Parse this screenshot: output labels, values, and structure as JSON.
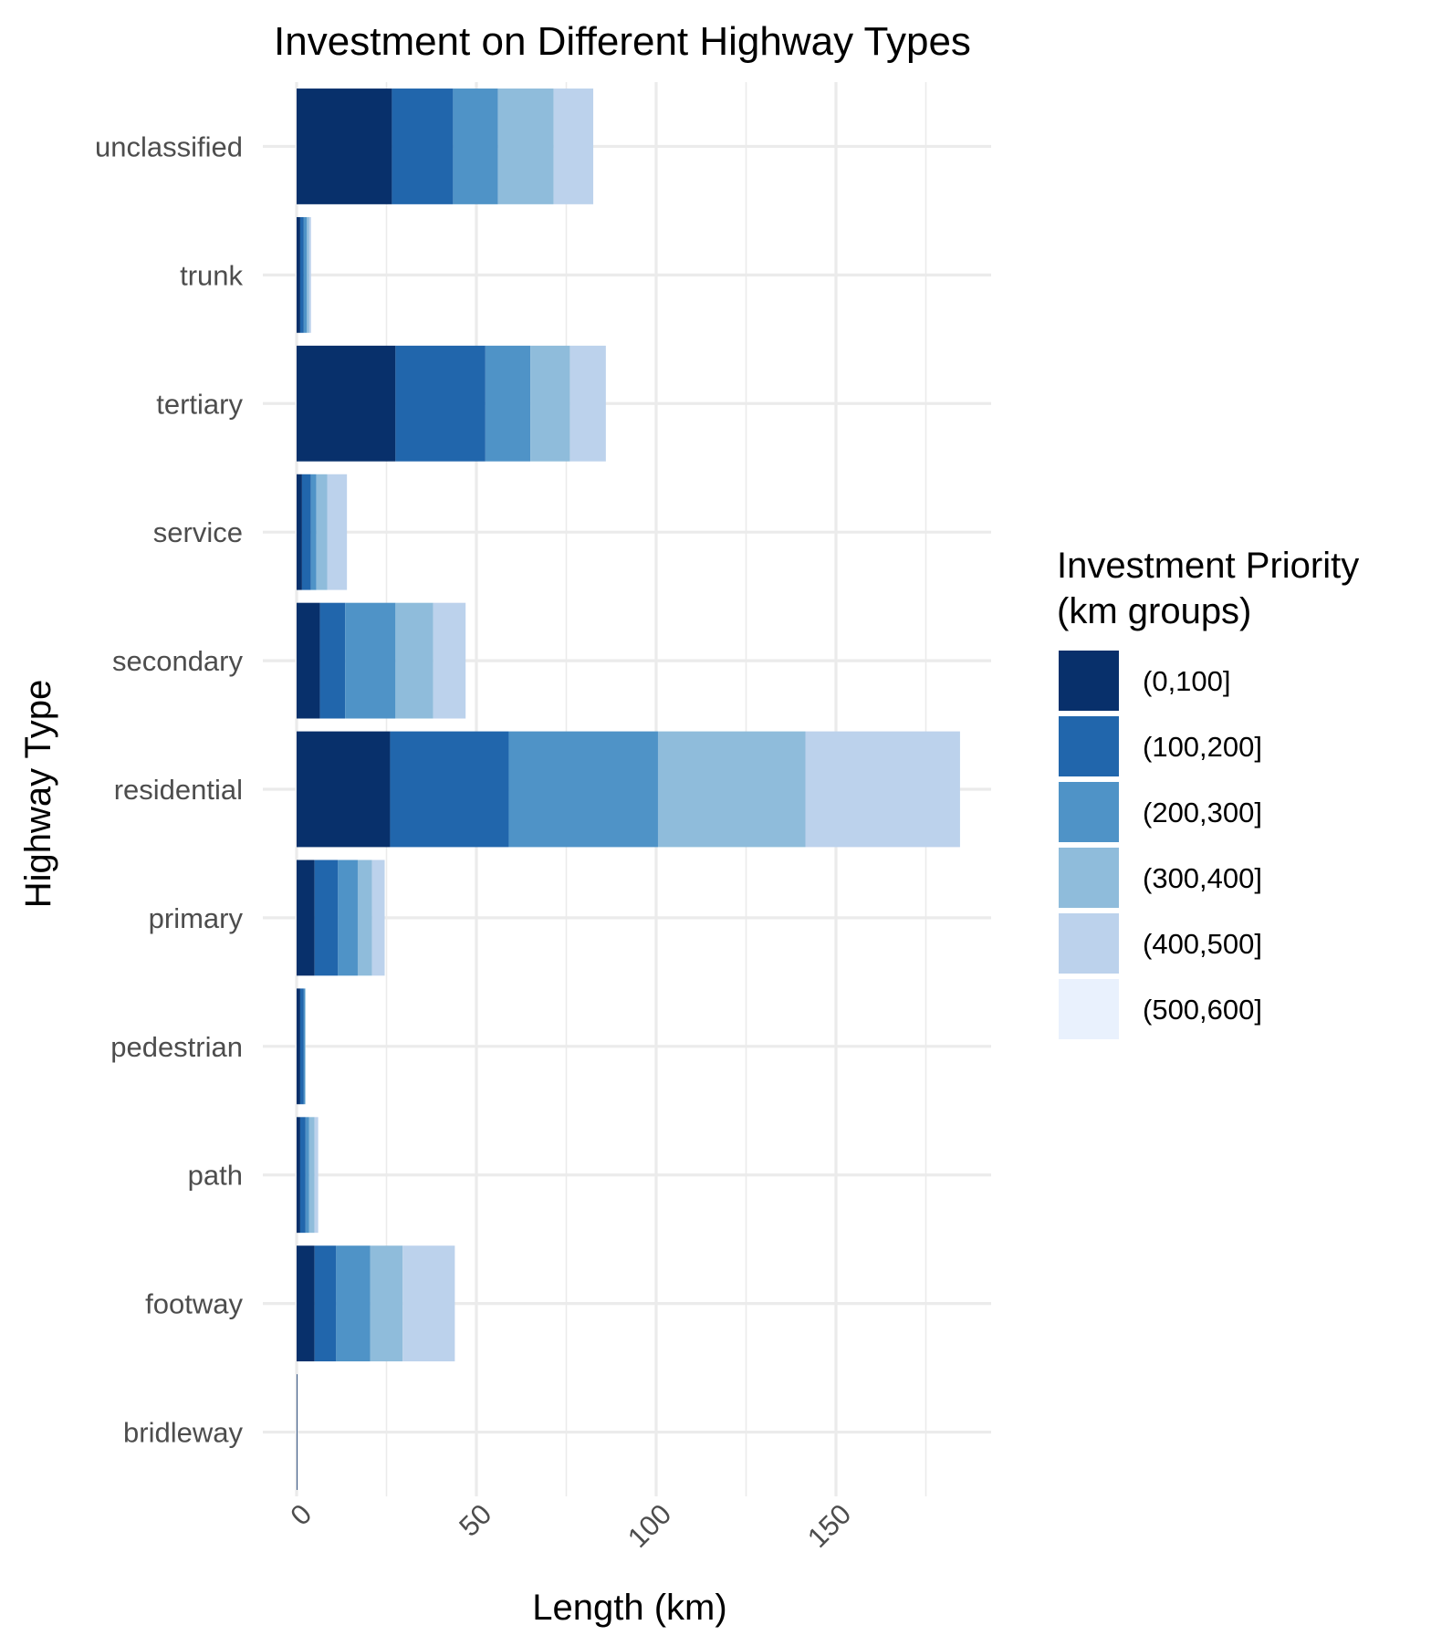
{
  "chart_data": {
    "type": "bar",
    "orientation": "horizontal",
    "stacked": true,
    "title": "Investment on Different Highway Types",
    "xlabel": "Length (km)",
    "ylabel": "Highway Type",
    "xlim": [
      -9.2,
      193.5
    ],
    "x_ticks": [
      0,
      50,
      100,
      150
    ],
    "x_tick_labels": [
      "0",
      "50",
      "100",
      "150"
    ],
    "x_tick_rotation": -45,
    "grid": true,
    "categories": [
      "unclassified",
      "trunk",
      "tertiary",
      "service",
      "secondary",
      "residential",
      "primary",
      "pedestrian",
      "path",
      "footway",
      "bridleway"
    ],
    "series": [
      {
        "name": "(0,100]",
        "color": "#08306b",
        "values": [
          26.5,
          1.0,
          27.5,
          1.5,
          6.5,
          26.0,
          5.0,
          1.0,
          1.0,
          5.0,
          0.2
        ]
      },
      {
        "name": "(100,200]",
        "color": "#2166ac",
        "values": [
          17.0,
          1.0,
          25.0,
          2.5,
          7.0,
          33.0,
          6.5,
          1.0,
          1.5,
          6.0,
          0.0
        ]
      },
      {
        "name": "(200,300]",
        "color": "#4f93c7",
        "values": [
          12.5,
          0.8,
          12.5,
          1.5,
          14.0,
          41.5,
          5.5,
          0.3,
          1.0,
          9.5,
          0.0
        ]
      },
      {
        "name": "(300,400]",
        "color": "#8fbcdb",
        "values": [
          15.5,
          0.7,
          11.0,
          3.0,
          10.5,
          41.0,
          4.0,
          0.2,
          1.5,
          9.0,
          0.0
        ]
      },
      {
        "name": "(400,500]",
        "color": "#bcd2ec",
        "values": [
          11.0,
          0.5,
          10.0,
          5.5,
          9.0,
          43.0,
          3.5,
          0.0,
          1.0,
          14.5,
          0.0
        ]
      },
      {
        "name": "(500,600]",
        "color": "#e9f1fd",
        "values": [
          0,
          0,
          0,
          0,
          0,
          0,
          0,
          0,
          0,
          0,
          0
        ]
      }
    ],
    "legend": {
      "title_lines": [
        "Investment Priority",
        "(km groups)"
      ],
      "position": "right"
    }
  }
}
